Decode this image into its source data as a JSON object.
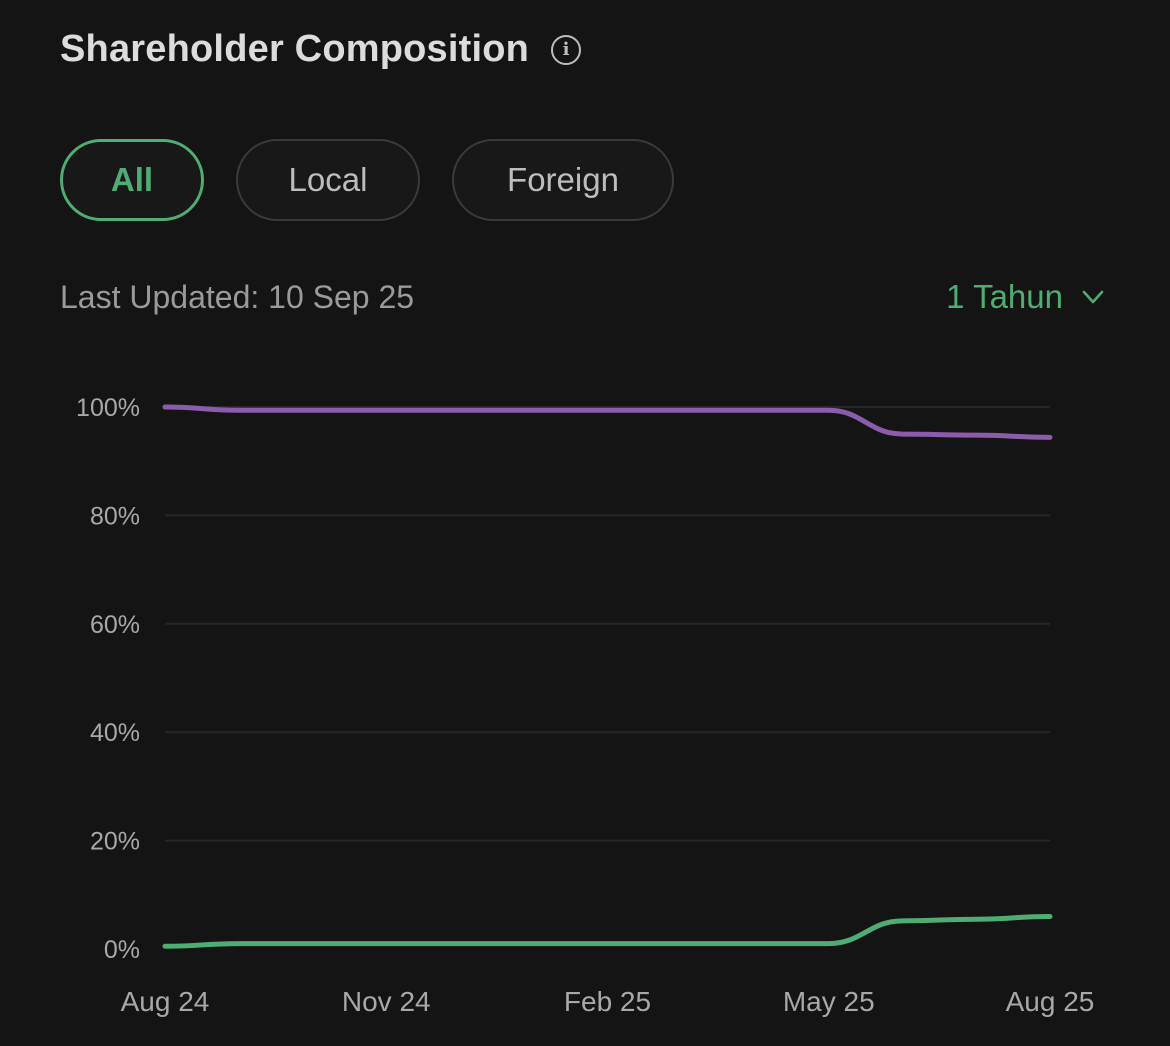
{
  "header": {
    "title": "Shareholder Composition",
    "info_icon": "info-icon"
  },
  "filters": {
    "all": "All",
    "local": "Local",
    "foreign": "Foreign",
    "active": "all"
  },
  "meta": {
    "last_updated": "Last Updated: 10 Sep 25",
    "range_label": "1 Tahun",
    "range_icon": "chevron-down-icon"
  },
  "colors": {
    "accent": "#4fad73",
    "series_upper": "#8a5cab",
    "series_lower": "#4fad73",
    "grid": "#262626"
  },
  "chart_data": {
    "type": "line",
    "x": [
      "Aug 24",
      "Sep 24",
      "Oct 24",
      "Nov 24",
      "Dec 24",
      "Jan 25",
      "Feb 25",
      "Mar 25",
      "Apr 25",
      "May 25",
      "Jun 25",
      "Jul 25",
      "Aug 25"
    ],
    "x_tick_labels": [
      "Aug 24",
      "Nov 24",
      "Feb 25",
      "May 25",
      "Aug 25"
    ],
    "y_tick_labels": [
      "100%",
      "80%",
      "60%",
      "40%",
      "20%",
      "0%"
    ],
    "ylim": [
      0,
      100
    ],
    "grid": true,
    "series": [
      {
        "color": "#8a5cab",
        "values": [
          100,
          99.4,
          99.4,
          99.4,
          99.4,
          99.4,
          99.4,
          99.4,
          99.4,
          99.4,
          95,
          94.8,
          94.4
        ]
      },
      {
        "color": "#4fad73",
        "values": [
          0.5,
          1,
          1,
          1,
          1,
          1,
          1,
          1,
          1,
          1,
          5.2,
          5.5,
          6
        ]
      }
    ]
  }
}
